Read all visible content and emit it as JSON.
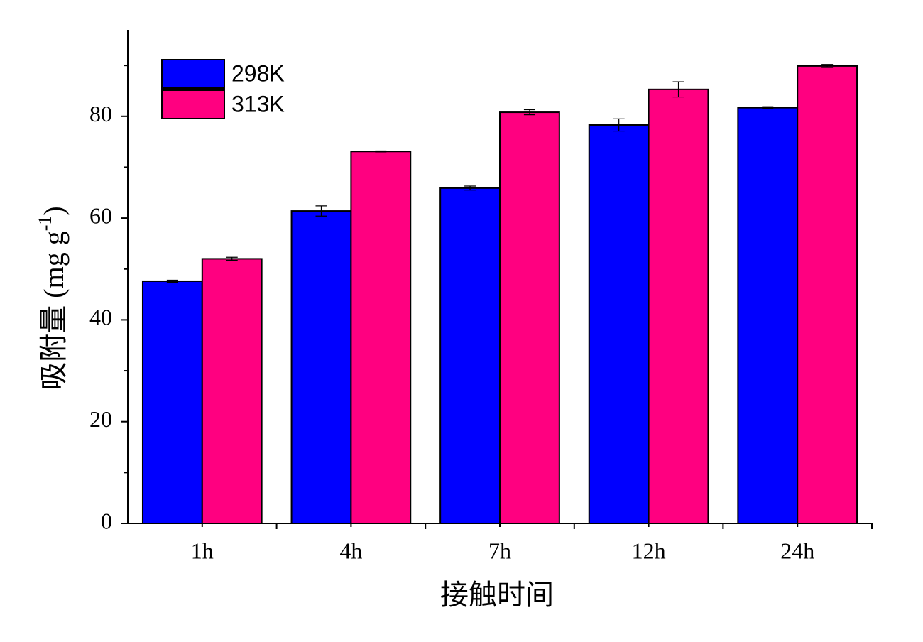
{
  "chart_data": {
    "type": "bar",
    "x_label": "接触时间",
    "y_label": {
      "main": "吸附量 (mg g",
      "sup": "-1",
      "end": ")"
    },
    "categories": [
      "1h",
      "4h",
      "7h",
      "12h",
      "24h"
    ],
    "series": [
      {
        "name": "298K",
        "color": "#0000ff",
        "values": [
          47.6,
          61.4,
          65.9,
          78.3,
          81.7
        ],
        "errors": [
          0.2,
          1.0,
          0.4,
          1.2,
          0.2
        ]
      },
      {
        "name": "313K",
        "color": "#ff0080",
        "values": [
          52.0,
          73.1,
          80.8,
          85.3,
          89.9
        ],
        "errors": [
          0.3,
          0.1,
          0.5,
          1.5,
          0.3
        ]
      }
    ],
    "ylim": [
      0,
      97
    ],
    "yticks": [
      0,
      20,
      40,
      60,
      80
    ],
    "yminorticks": [
      10,
      30,
      50,
      70,
      90
    ],
    "legend": "upper left"
  }
}
